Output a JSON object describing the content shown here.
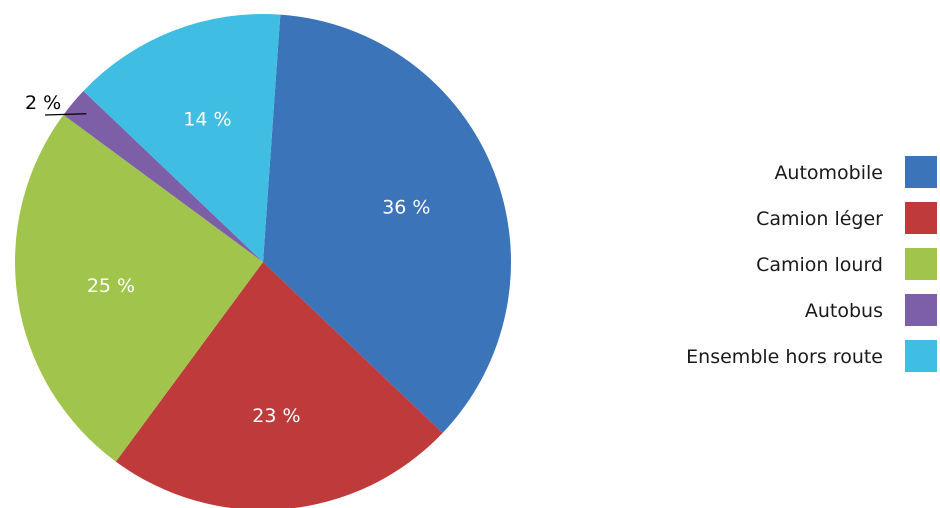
{
  "chart_data": {
    "type": "pie",
    "title": "",
    "slices": [
      {
        "name": "Automobile",
        "value": 36,
        "label": "36 %",
        "color": "#3b74b9"
      },
      {
        "name": "Camion léger",
        "value": 23,
        "label": "23 %",
        "color": "#bf3a3a"
      },
      {
        "name": "Camion lourd",
        "value": 25,
        "label": "25 %",
        "color": "#a1c54c"
      },
      {
        "name": "Autobus",
        "value": 2,
        "label": "2 %",
        "color": "#7d5fa8"
      },
      {
        "name": "Ensemble hors route",
        "value": 14,
        "label": "14 %",
        "color": "#40bde3"
      }
    ],
    "legend_position": "right"
  }
}
